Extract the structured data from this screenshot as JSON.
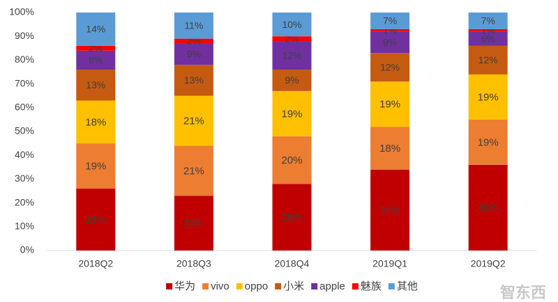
{
  "chart_data": {
    "type": "stacked_bar",
    "categories": [
      "2018Q2",
      "2018Q3",
      "2018Q4",
      "2019Q1",
      "2019Q2"
    ],
    "series": [
      {
        "name": "华为",
        "color": "#c00000",
        "values": [
          26,
          23,
          28,
          34,
          36
        ],
        "value_labels": [
          "26%",
          "23%",
          "28%",
          "34%",
          "36%"
        ]
      },
      {
        "name": "vivo",
        "color": "#ed7d31",
        "values": [
          19,
          21,
          20,
          18,
          19
        ],
        "value_labels": [
          "19%",
          "21%",
          "20%",
          "18%",
          "19%"
        ]
      },
      {
        "name": "oppo",
        "color": "#ffc000",
        "values": [
          18,
          21,
          19,
          19,
          19
        ],
        "value_labels": [
          "18%",
          "21%",
          "19%",
          "19%",
          "19%"
        ]
      },
      {
        "name": "小米",
        "color": "#c55a11",
        "values": [
          13,
          13,
          9,
          12,
          12
        ],
        "value_labels": [
          "13%",
          "13%",
          "9%",
          "12%",
          "12%"
        ]
      },
      {
        "name": "apple",
        "color": "#7030a0",
        "values": [
          8,
          9,
          12,
          9,
          6
        ],
        "value_labels": [
          "8%",
          "9%",
          "12%",
          "9%",
          "6%"
        ]
      },
      {
        "name": "魅族",
        "color": "#ff0000",
        "values": [
          2,
          2,
          2,
          1,
          1
        ],
        "value_labels": [
          "2%",
          "2%",
          "2%",
          "1%",
          "1%"
        ]
      },
      {
        "name": "其他",
        "color": "#5b9bd5",
        "values": [
          14,
          11,
          10,
          7,
          7
        ],
        "value_labels": [
          "14%",
          "11%",
          "10%",
          "7%",
          "7%"
        ]
      }
    ],
    "ylim": [
      0,
      100
    ],
    "yticks": [
      {
        "value": 0,
        "label": "0%"
      },
      {
        "value": 10,
        "label": "10%"
      },
      {
        "value": 20,
        "label": "20%"
      },
      {
        "value": 30,
        "label": "30%"
      },
      {
        "value": 40,
        "label": "40%"
      },
      {
        "value": 50,
        "label": "50%"
      },
      {
        "value": 60,
        "label": "60%"
      },
      {
        "value": 70,
        "label": "70%"
      },
      {
        "value": 80,
        "label": "80%"
      },
      {
        "value": 90,
        "label": "90%"
      },
      {
        "value": 100,
        "label": "100%"
      }
    ],
    "grid": false,
    "legend": "bottom",
    "watermark": "智东西"
  }
}
